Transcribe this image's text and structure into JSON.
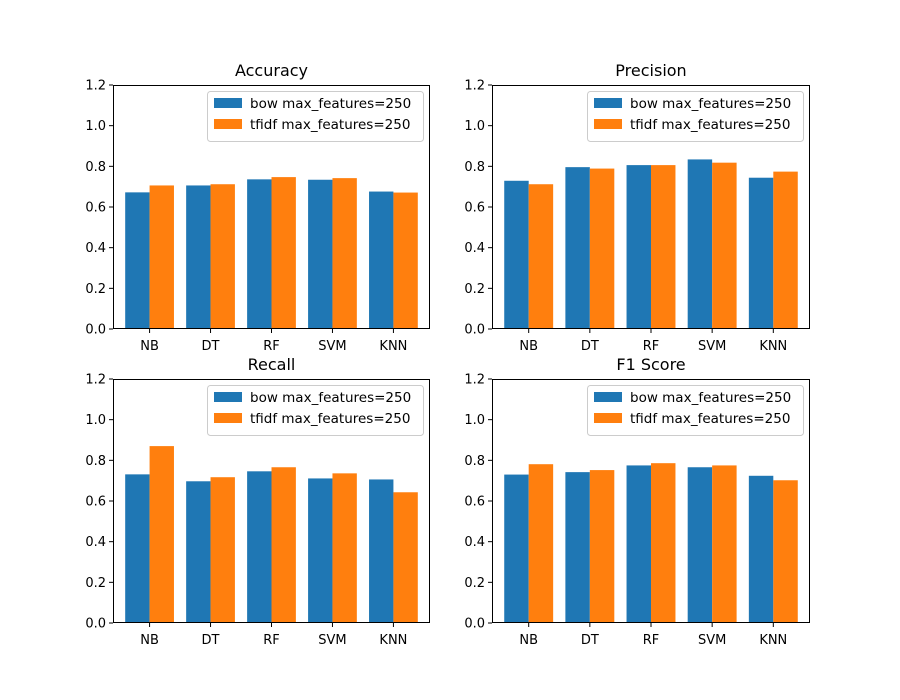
{
  "chart_data": [
    {
      "type": "bar",
      "title": "Accuracy",
      "categories": [
        "NB",
        "DT",
        "RF",
        "SVM",
        "KNN"
      ],
      "series": [
        {
          "name": "bow max_features=250",
          "values": [
            0.672,
            0.706,
            0.736,
            0.734,
            0.676
          ]
        },
        {
          "name": "tfidf max_features=250",
          "values": [
            0.706,
            0.712,
            0.747,
            0.742,
            0.671
          ]
        }
      ],
      "ylim": [
        0,
        1.2
      ],
      "yticks": [
        "0.0",
        "0.2",
        "0.4",
        "0.6",
        "0.8",
        "1.0",
        "1.2"
      ],
      "legend": "top-right",
      "grid": false
    },
    {
      "type": "bar",
      "title": "Precision",
      "categories": [
        "NB",
        "DT",
        "RF",
        "SVM",
        "KNN"
      ],
      "series": [
        {
          "name": "bow max_features=250",
          "values": [
            0.729,
            0.796,
            0.806,
            0.834,
            0.744
          ]
        },
        {
          "name": "tfidf max_features=250",
          "values": [
            0.712,
            0.789,
            0.806,
            0.818,
            0.774
          ]
        }
      ],
      "ylim": [
        0,
        1.2
      ],
      "yticks": [
        "0.0",
        "0.2",
        "0.4",
        "0.6",
        "0.8",
        "1.0",
        "1.2"
      ],
      "legend": "top-right",
      "grid": false
    },
    {
      "type": "bar",
      "title": "Recall",
      "categories": [
        "NB",
        "DT",
        "RF",
        "SVM",
        "KNN"
      ],
      "series": [
        {
          "name": "bow max_features=250",
          "values": [
            0.731,
            0.697,
            0.746,
            0.711,
            0.706
          ]
        },
        {
          "name": "tfidf max_features=250",
          "values": [
            0.87,
            0.717,
            0.766,
            0.736,
            0.643
          ]
        }
      ],
      "ylim": [
        0,
        1.2
      ],
      "yticks": [
        "0.0",
        "0.2",
        "0.4",
        "0.6",
        "0.8",
        "1.0",
        "1.2"
      ],
      "legend": "top-right",
      "grid": false
    },
    {
      "type": "bar",
      "title": "F1 Score",
      "categories": [
        "NB",
        "DT",
        "RF",
        "SVM",
        "KNN"
      ],
      "series": [
        {
          "name": "bow max_features=250",
          "values": [
            0.73,
            0.742,
            0.775,
            0.766,
            0.724
          ]
        },
        {
          "name": "tfidf max_features=250",
          "values": [
            0.781,
            0.752,
            0.786,
            0.775,
            0.702
          ]
        }
      ],
      "ylim": [
        0,
        1.2
      ],
      "yticks": [
        "0.0",
        "0.2",
        "0.4",
        "0.6",
        "0.8",
        "1.0",
        "1.2"
      ],
      "legend": "top-right",
      "grid": false
    }
  ],
  "colors": {
    "series": [
      "#1f77b4",
      "#ff7f0e"
    ],
    "axis": "#000000",
    "legend_border": "#cccccc",
    "background": "#ffffff"
  }
}
